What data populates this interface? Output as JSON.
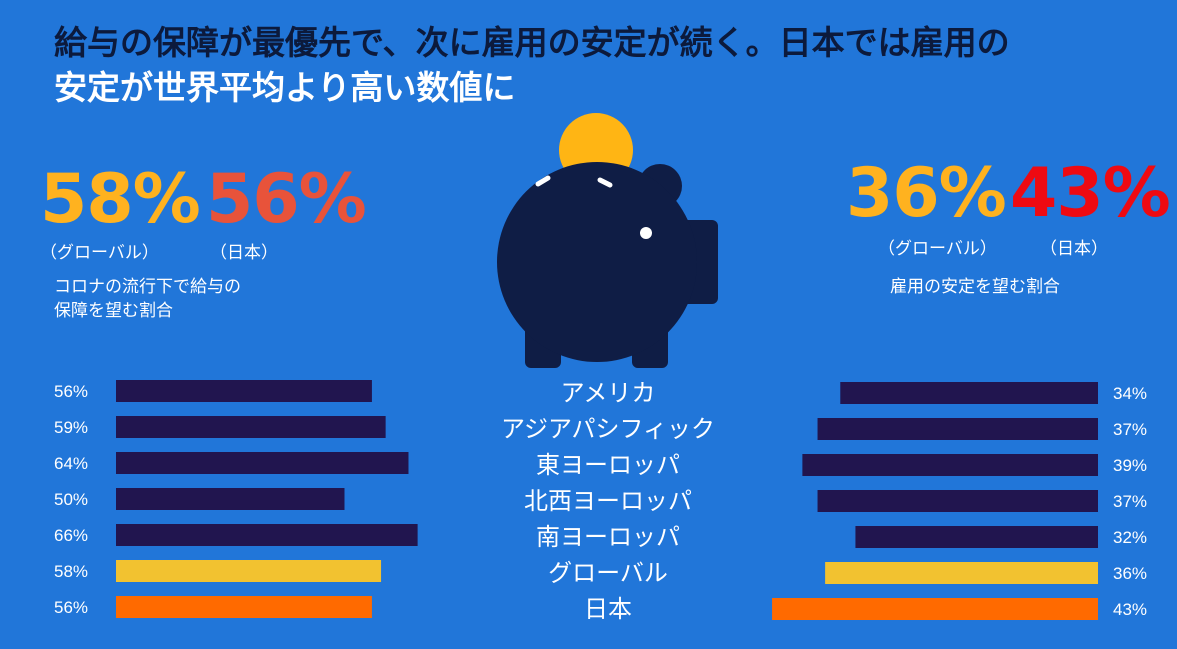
{
  "title": {
    "line1": "給与の保障が最優先で、次に雇用の安定が続く。日本では雇用の",
    "line2": "安定が世界平均より高い数値に"
  },
  "left_stats": {
    "global_value": "58%",
    "global_label": "（グローバル）",
    "japan_value": "56%",
    "japan_label": "（日本）",
    "description_line1": "コロナの流行下で給与の",
    "description_line2": "保障を望む割合"
  },
  "right_stats": {
    "global_value": "36%",
    "global_label": "（グローバル）",
    "japan_value": "43%",
    "japan_label": "（日本）",
    "description": "雇用の安定を望む割合"
  },
  "colors": {
    "background": "#2176d9",
    "title_dark": "#0c1a3c",
    "region_bar": "#21154f",
    "global_bar": "#f2c230",
    "japan_bar": "#ff6a00",
    "stat_global": "#ffb21f",
    "stat_japan_left": "#e8533a",
    "stat_japan_right": "#ee0a12",
    "piggy": "#0f1d45",
    "coin": "#ffb514"
  },
  "illustration": "piggy-bank-with-coin",
  "chart_data": [
    {
      "type": "bar",
      "orientation": "horizontal",
      "direction": "left-to-right",
      "categories": [
        "アメリカ",
        "アジアパシフィック",
        "東ヨーロッパ",
        "北西ヨーロッパ",
        "南ヨーロッパ",
        "グローバル",
        "日本"
      ],
      "values": [
        56,
        59,
        64,
        50,
        66,
        58,
        56
      ],
      "data_labels": [
        "56%",
        "59%",
        "64%",
        "50%",
        "66%",
        "58%",
        "56%"
      ]
    },
    {
      "type": "bar",
      "orientation": "horizontal",
      "direction": "right-to-left",
      "categories": [
        "アメリカ",
        "アジアパシフィック",
        "東ヨーロッパ",
        "北西ヨーロッパ",
        "南ヨーロッパ",
        "グローバル",
        "日本"
      ],
      "values": [
        34,
        37,
        39,
        37,
        32,
        36,
        43
      ],
      "data_labels": [
        "34%",
        "37%",
        "39%",
        "37%",
        "32%",
        "36%",
        "43%"
      ]
    }
  ]
}
